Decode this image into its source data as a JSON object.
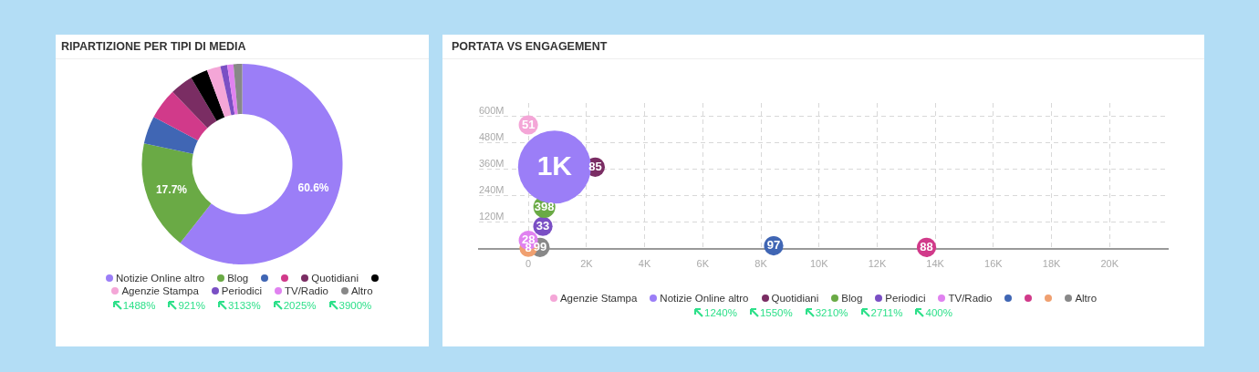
{
  "chart_data": [
    {
      "type": "donut",
      "title": "RIPARTIZIONE PER TIPI DI MEDIA",
      "categories": [
        "Notizie Online altro",
        "Blog",
        null,
        null,
        "Quotidiani",
        null,
        "Agenzie Stampa",
        "Periodici",
        "TV/Radio",
        "Altro"
      ],
      "values": [
        60.6,
        17.7,
        4.5,
        5.0,
        3.7,
        2.8,
        2.2,
        1.1,
        1.0,
        1.4
      ],
      "colors": [
        "#9b7ef7",
        "#6aaa45",
        "#4066b4",
        "#d13a8a",
        "#7a2d63",
        "#000000",
        "#f4a6d7",
        "#7a4fc4",
        "#e082f0",
        "#888888"
      ],
      "value_labels": [
        "60.6%",
        "17.7%",
        null,
        null,
        null,
        null,
        null,
        null,
        null,
        null
      ],
      "legend": "bottom",
      "annotations": [
        "1488%",
        "921%",
        "3133%",
        "2025%",
        "3900%"
      ]
    },
    {
      "type": "bubble",
      "title": "PORTATA VS ENGAGEMENT",
      "xlim": [
        -1700,
        22000
      ],
      "xticks": [
        0,
        {
          "value": 2000,
          "label": "2K"
        },
        {
          "value": 4000,
          "label": "4K"
        },
        {
          "value": 6000,
          "label": "6K"
        },
        {
          "value": 8000,
          "label": "8K"
        },
        {
          "value": 10000,
          "label": "10K"
        },
        {
          "value": 12000,
          "label": "12K"
        },
        {
          "value": 14000,
          "label": "14K"
        },
        {
          "value": 16000,
          "label": "16K"
        },
        {
          "value": 18000,
          "label": "18K"
        },
        {
          "value": 20000,
          "label": "20K"
        }
      ],
      "ylim": [
        0,
        660000000
      ],
      "yticks": [
        {
          "value": 0,
          "label": null
        },
        {
          "value": 120000000,
          "label": "120M"
        },
        {
          "value": 240000000,
          "label": "240M"
        },
        {
          "value": 360000000,
          "label": "360M"
        },
        {
          "value": 480000000,
          "label": "480M"
        },
        {
          "value": 600000000,
          "label": "600M"
        }
      ],
      "grid": true,
      "legend": "bottom",
      "series": [
        {
          "name": "Agenzie Stampa",
          "color": "#f4a6d7",
          "x": [
            0
          ],
          "values": [
            561000000
          ],
          "sizes": [
            0.07
          ]
        },
        {
          "name": "Notizie Online altro",
          "color": "#9b7ef7",
          "x": [
            900
          ],
          "values": [
            370000000
          ],
          "sizes": [
            1
          ]
        },
        {
          "name": "Quotidiani",
          "color": "#7a2d63",
          "x": [
            2300
          ],
          "values": [
            370000000
          ],
          "sizes": [
            0.07
          ]
        },
        {
          "name": "Blog",
          "color": "#6aaa45",
          "x": [
            550
          ],
          "values": [
            190000000
          ],
          "sizes": [
            0.09
          ]
        },
        {
          "name": "Periodici",
          "color": "#7a4fc4",
          "x": [
            500
          ],
          "values": [
            102000000
          ],
          "sizes": [
            0.07
          ]
        },
        {
          "name": "TV/Radio",
          "color": "#e082f0",
          "x": [
            0
          ],
          "values": [
            39000000
          ],
          "sizes": [
            0.07
          ]
        },
        {
          "color": "#4066b4",
          "x": [
            8440
          ],
          "values": [
            14000000
          ],
          "sizes": [
            0.07
          ]
        },
        {
          "color": "#d13a8a",
          "x": [
            13700
          ],
          "values": [
            7000000
          ],
          "sizes": [
            0.07
          ]
        },
        {
          "color": "#f0a070",
          "x": [
            0
          ],
          "values": [
            4000000
          ],
          "sizes": [
            0.06
          ]
        },
        {
          "name": "Altro",
          "color": "#888888",
          "x": [
            400
          ],
          "values": [
            7000000
          ],
          "sizes": [
            0.07
          ]
        }
      ],
      "annotations": [
        "1240%",
        "1550%",
        "3210%",
        "2711%",
        "400%",
        {
          "text": "51",
          "x": 0,
          "y": 561000000
        },
        {
          "text": "1K",
          "x": 900,
          "y": 370000000
        },
        {
          "text": "85",
          "x": 2300,
          "y": 370000000
        },
        {
          "text": "398",
          "x": 550,
          "y": 190000000
        },
        {
          "text": "33",
          "x": 500,
          "y": 102000000
        },
        {
          "text": "28",
          "x": 0,
          "y": 39000000
        },
        {
          "text": "97",
          "x": 8440,
          "y": 14000000
        },
        {
          "text": "88",
          "x": 13700,
          "y": 7000000
        },
        {
          "text": "8",
          "x": 0,
          "y": 4000000
        },
        {
          "text": "99",
          "x": 400,
          "y": 7000000
        }
      ]
    }
  ]
}
